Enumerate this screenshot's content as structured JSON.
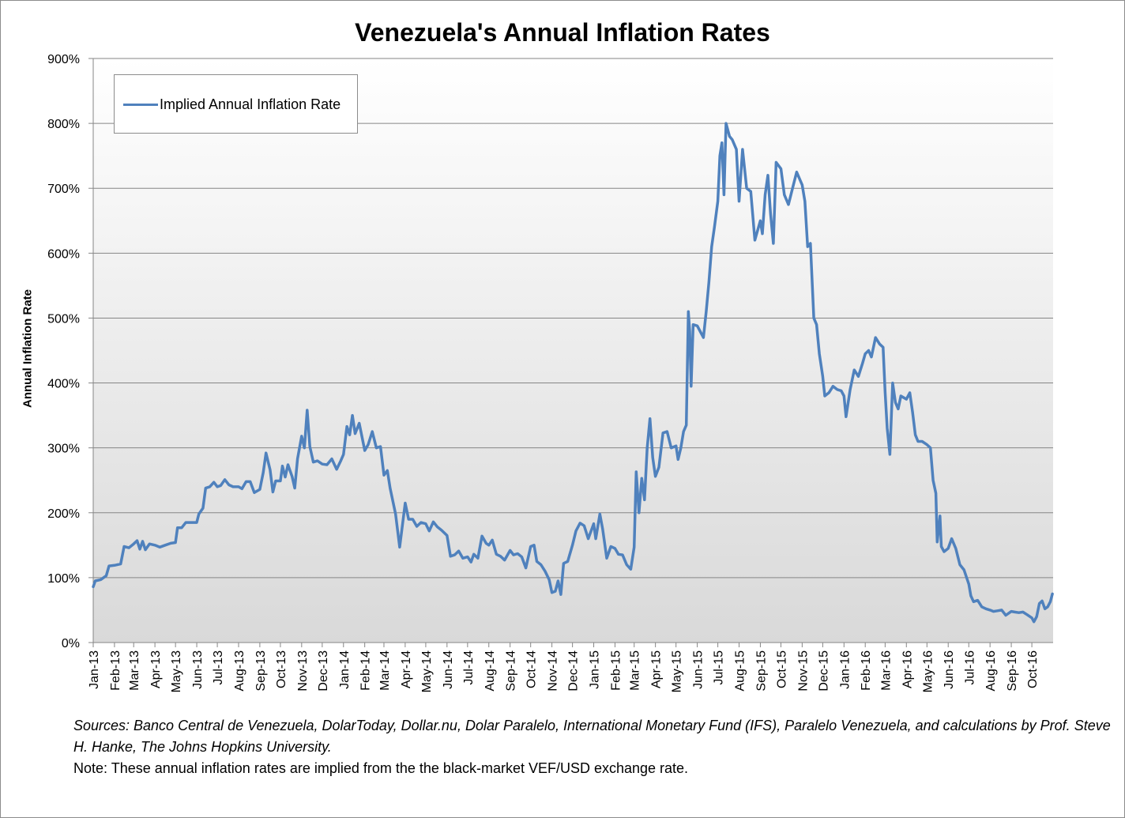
{
  "chart_data": {
    "type": "line",
    "title": "Venezuela's Annual Inflation Rates",
    "ylabel": "Annual Inflation Rate",
    "xlabel": "",
    "ylim": [
      0,
      900
    ],
    "y_ticks": [
      "0%",
      "100%",
      "200%",
      "300%",
      "400%",
      "500%",
      "600%",
      "700%",
      "800%",
      "900%"
    ],
    "x_ticks": [
      "Jan-13",
      "Feb-13",
      "Mar-13",
      "Apr-13",
      "May-13",
      "Jun-13",
      "Jul-13",
      "Aug-13",
      "Sep-13",
      "Oct-13",
      "Nov-13",
      "Dec-13",
      "Jan-14",
      "Feb-14",
      "Mar-14",
      "Apr-14",
      "May-14",
      "Jun-14",
      "Jul-14",
      "Aug-14",
      "Sep-14",
      "Oct-14",
      "Nov-14",
      "Dec-14",
      "Jan-15",
      "Feb-15",
      "Mar-15",
      "Apr-15",
      "May-15",
      "Jun-15",
      "Jul-15",
      "Aug-15",
      "Sep-15",
      "Oct-15",
      "Nov-15",
      "Dec-15",
      "Jan-16",
      "Feb-16",
      "Mar-16",
      "Apr-16",
      "May-16",
      "Jun-16",
      "Jul-16",
      "Aug-16",
      "Sep-16",
      "Oct-16"
    ],
    "grid": true,
    "legend_position": "top-left",
    "series": [
      {
        "name": "Implied Annual Inflation Rate",
        "color": "#4f81bd",
        "points": [
          [
            "2013-01-01",
            86
          ],
          [
            "2013-01-04",
            95
          ],
          [
            "2013-01-12",
            97
          ],
          [
            "2013-01-20",
            103
          ],
          [
            "2013-01-24",
            118
          ],
          [
            "2013-02-01",
            119
          ],
          [
            "2013-02-10",
            121
          ],
          [
            "2013-02-15",
            148
          ],
          [
            "2013-02-22",
            146
          ],
          [
            "2013-03-01",
            152
          ],
          [
            "2013-03-06",
            157
          ],
          [
            "2013-03-10",
            144
          ],
          [
            "2013-03-14",
            156
          ],
          [
            "2013-03-18",
            143
          ],
          [
            "2013-03-24",
            152
          ],
          [
            "2013-04-01",
            150
          ],
          [
            "2013-04-08",
            147
          ],
          [
            "2013-04-16",
            150
          ],
          [
            "2013-04-24",
            153
          ],
          [
            "2013-05-01",
            154
          ],
          [
            "2013-05-04",
            177
          ],
          [
            "2013-05-10",
            177
          ],
          [
            "2013-05-16",
            185
          ],
          [
            "2013-05-24",
            185
          ],
          [
            "2013-06-01",
            185
          ],
          [
            "2013-06-04",
            198
          ],
          [
            "2013-06-10",
            207
          ],
          [
            "2013-06-14",
            238
          ],
          [
            "2013-06-20",
            240
          ],
          [
            "2013-06-26",
            247
          ],
          [
            "2013-07-01",
            240
          ],
          [
            "2013-07-06",
            242
          ],
          [
            "2013-07-12",
            251
          ],
          [
            "2013-07-18",
            243
          ],
          [
            "2013-07-24",
            240
          ],
          [
            "2013-08-01",
            240
          ],
          [
            "2013-08-06",
            237
          ],
          [
            "2013-08-12",
            248
          ],
          [
            "2013-08-18",
            248
          ],
          [
            "2013-08-24",
            231
          ],
          [
            "2013-09-01",
            236
          ],
          [
            "2013-09-06",
            262
          ],
          [
            "2013-09-10",
            292
          ],
          [
            "2013-09-16",
            266
          ],
          [
            "2013-09-20",
            232
          ],
          [
            "2013-09-24",
            249
          ],
          [
            "2013-10-01",
            249
          ],
          [
            "2013-10-04",
            272
          ],
          [
            "2013-10-08",
            255
          ],
          [
            "2013-10-12",
            274
          ],
          [
            "2013-10-18",
            256
          ],
          [
            "2013-10-22",
            238
          ],
          [
            "2013-10-26",
            283
          ],
          [
            "2013-11-01",
            318
          ],
          [
            "2013-11-05",
            300
          ],
          [
            "2013-11-09",
            358
          ],
          [
            "2013-11-13",
            302
          ],
          [
            "2013-11-18",
            278
          ],
          [
            "2013-11-24",
            280
          ],
          [
            "2013-12-01",
            275
          ],
          [
            "2013-12-08",
            274
          ],
          [
            "2013-12-15",
            283
          ],
          [
            "2013-12-22",
            267
          ],
          [
            "2013-12-28",
            280
          ],
          [
            "2014-01-01",
            290
          ],
          [
            "2014-01-06",
            333
          ],
          [
            "2014-01-10",
            320
          ],
          [
            "2014-01-14",
            350
          ],
          [
            "2014-01-18",
            322
          ],
          [
            "2014-01-24",
            338
          ],
          [
            "2014-02-01",
            296
          ],
          [
            "2014-02-06",
            305
          ],
          [
            "2014-02-12",
            325
          ],
          [
            "2014-02-18",
            300
          ],
          [
            "2014-02-24",
            302
          ],
          [
            "2014-03-01",
            258
          ],
          [
            "2014-03-06",
            265
          ],
          [
            "2014-03-10",
            238
          ],
          [
            "2014-03-18",
            198
          ],
          [
            "2014-03-24",
            147
          ],
          [
            "2014-04-01",
            215
          ],
          [
            "2014-04-06",
            190
          ],
          [
            "2014-04-12",
            190
          ],
          [
            "2014-04-18",
            179
          ],
          [
            "2014-04-24",
            185
          ],
          [
            "2014-05-01",
            183
          ],
          [
            "2014-05-06",
            172
          ],
          [
            "2014-05-12",
            186
          ],
          [
            "2014-05-18",
            178
          ],
          [
            "2014-05-24",
            173
          ],
          [
            "2014-06-01",
            165
          ],
          [
            "2014-06-06",
            133
          ],
          [
            "2014-06-12",
            135
          ],
          [
            "2014-06-18",
            141
          ],
          [
            "2014-06-24",
            130
          ],
          [
            "2014-07-01",
            132
          ],
          [
            "2014-07-06",
            124
          ],
          [
            "2014-07-10",
            136
          ],
          [
            "2014-07-16",
            130
          ],
          [
            "2014-07-22",
            164
          ],
          [
            "2014-07-28",
            153
          ],
          [
            "2014-08-01",
            150
          ],
          [
            "2014-08-06",
            158
          ],
          [
            "2014-08-12",
            136
          ],
          [
            "2014-08-18",
            133
          ],
          [
            "2014-08-24",
            127
          ],
          [
            "2014-09-01",
            142
          ],
          [
            "2014-09-06",
            135
          ],
          [
            "2014-09-12",
            137
          ],
          [
            "2014-09-18",
            132
          ],
          [
            "2014-09-24",
            115
          ],
          [
            "2014-10-01",
            148
          ],
          [
            "2014-10-06",
            150
          ],
          [
            "2014-10-10",
            125
          ],
          [
            "2014-10-16",
            120
          ],
          [
            "2014-10-22",
            110
          ],
          [
            "2014-10-28",
            97
          ],
          [
            "2014-11-01",
            77
          ],
          [
            "2014-11-06",
            79
          ],
          [
            "2014-11-10",
            95
          ],
          [
            "2014-11-14",
            74
          ],
          [
            "2014-11-18",
            122
          ],
          [
            "2014-11-24",
            125
          ],
          [
            "2014-12-01",
            150
          ],
          [
            "2014-12-06",
            172
          ],
          [
            "2014-12-12",
            184
          ],
          [
            "2014-12-18",
            180
          ],
          [
            "2014-12-24",
            160
          ],
          [
            "2015-01-01",
            183
          ],
          [
            "2015-01-04",
            160
          ],
          [
            "2015-01-10",
            198
          ],
          [
            "2015-01-14",
            175
          ],
          [
            "2015-01-20",
            130
          ],
          [
            "2015-01-26",
            148
          ],
          [
            "2015-02-01",
            145
          ],
          [
            "2015-02-06",
            136
          ],
          [
            "2015-02-12",
            135
          ],
          [
            "2015-02-18",
            120
          ],
          [
            "2015-02-24",
            113
          ],
          [
            "2015-03-01",
            147
          ],
          [
            "2015-03-04",
            263
          ],
          [
            "2015-03-08",
            200
          ],
          [
            "2015-03-12",
            253
          ],
          [
            "2015-03-16",
            220
          ],
          [
            "2015-03-20",
            300
          ],
          [
            "2015-03-24",
            345
          ],
          [
            "2015-03-28",
            285
          ],
          [
            "2015-04-01",
            256
          ],
          [
            "2015-04-06",
            270
          ],
          [
            "2015-04-12",
            323
          ],
          [
            "2015-04-18",
            325
          ],
          [
            "2015-04-24",
            300
          ],
          [
            "2015-05-01",
            303
          ],
          [
            "2015-05-04",
            282
          ],
          [
            "2015-05-08",
            300
          ],
          [
            "2015-05-12",
            325
          ],
          [
            "2015-05-16",
            335
          ],
          [
            "2015-05-19",
            510
          ],
          [
            "2015-05-21",
            480
          ],
          [
            "2015-05-23",
            395
          ],
          [
            "2015-05-26",
            490
          ],
          [
            "2015-06-01",
            488
          ],
          [
            "2015-06-06",
            478
          ],
          [
            "2015-06-10",
            470
          ],
          [
            "2015-06-14",
            510
          ],
          [
            "2015-06-18",
            555
          ],
          [
            "2015-06-22",
            610
          ],
          [
            "2015-06-26",
            640
          ],
          [
            "2015-07-01",
            680
          ],
          [
            "2015-07-04",
            750
          ],
          [
            "2015-07-07",
            770
          ],
          [
            "2015-07-10",
            690
          ],
          [
            "2015-07-13",
            800
          ],
          [
            "2015-07-18",
            780
          ],
          [
            "2015-07-22",
            775
          ],
          [
            "2015-07-28",
            760
          ],
          [
            "2015-08-01",
            680
          ],
          [
            "2015-08-06",
            760
          ],
          [
            "2015-08-12",
            700
          ],
          [
            "2015-08-18",
            695
          ],
          [
            "2015-08-24",
            620
          ],
          [
            "2015-09-01",
            650
          ],
          [
            "2015-09-04",
            630
          ],
          [
            "2015-09-08",
            690
          ],
          [
            "2015-09-12",
            720
          ],
          [
            "2015-09-16",
            660
          ],
          [
            "2015-09-20",
            615
          ],
          [
            "2015-09-24",
            740
          ],
          [
            "2015-10-01",
            730
          ],
          [
            "2015-10-06",
            690
          ],
          [
            "2015-10-12",
            675
          ],
          [
            "2015-10-18",
            700
          ],
          [
            "2015-10-24",
            725
          ],
          [
            "2015-11-01",
            705
          ],
          [
            "2015-11-05",
            680
          ],
          [
            "2015-11-09",
            610
          ],
          [
            "2015-11-13",
            615
          ],
          [
            "2015-11-18",
            500
          ],
          [
            "2015-11-22",
            490
          ],
          [
            "2015-11-26",
            445
          ],
          [
            "2015-12-01",
            410
          ],
          [
            "2015-12-04",
            380
          ],
          [
            "2015-12-10",
            385
          ],
          [
            "2015-12-16",
            395
          ],
          [
            "2015-12-22",
            390
          ],
          [
            "2015-12-28",
            388
          ],
          [
            "2016-01-01",
            380
          ],
          [
            "2016-01-04",
            348
          ],
          [
            "2016-01-10",
            390
          ],
          [
            "2016-01-16",
            420
          ],
          [
            "2016-01-22",
            410
          ],
          [
            "2016-01-28",
            430
          ],
          [
            "2016-02-01",
            445
          ],
          [
            "2016-02-06",
            450
          ],
          [
            "2016-02-10",
            440
          ],
          [
            "2016-02-16",
            470
          ],
          [
            "2016-02-22",
            460
          ],
          [
            "2016-02-27",
            455
          ],
          [
            "2016-03-01",
            385
          ],
          [
            "2016-03-04",
            330
          ],
          [
            "2016-03-08",
            290
          ],
          [
            "2016-03-12",
            400
          ],
          [
            "2016-03-16",
            370
          ],
          [
            "2016-03-20",
            360
          ],
          [
            "2016-03-24",
            380
          ],
          [
            "2016-04-01",
            375
          ],
          [
            "2016-04-06",
            385
          ],
          [
            "2016-04-10",
            355
          ],
          [
            "2016-04-14",
            320
          ],
          [
            "2016-04-18",
            310
          ],
          [
            "2016-04-24",
            310
          ],
          [
            "2016-05-01",
            305
          ],
          [
            "2016-05-06",
            300
          ],
          [
            "2016-05-10",
            250
          ],
          [
            "2016-05-14",
            230
          ],
          [
            "2016-05-16",
            155
          ],
          [
            "2016-05-20",
            195
          ],
          [
            "2016-05-22",
            148
          ],
          [
            "2016-05-26",
            140
          ],
          [
            "2016-06-01",
            145
          ],
          [
            "2016-06-06",
            160
          ],
          [
            "2016-06-12",
            145
          ],
          [
            "2016-06-18",
            120
          ],
          [
            "2016-06-24",
            112
          ],
          [
            "2016-07-01",
            90
          ],
          [
            "2016-07-04",
            72
          ],
          [
            "2016-07-08",
            63
          ],
          [
            "2016-07-14",
            65
          ],
          [
            "2016-07-20",
            55
          ],
          [
            "2016-07-26",
            52
          ],
          [
            "2016-08-01",
            50
          ],
          [
            "2016-08-06",
            48
          ],
          [
            "2016-08-12",
            49
          ],
          [
            "2016-08-18",
            50
          ],
          [
            "2016-08-24",
            42
          ],
          [
            "2016-09-01",
            48
          ],
          [
            "2016-09-06",
            47
          ],
          [
            "2016-09-12",
            46
          ],
          [
            "2016-09-18",
            47
          ],
          [
            "2016-09-24",
            43
          ],
          [
            "2016-10-01",
            38
          ],
          [
            "2016-10-04",
            32
          ],
          [
            "2016-10-08",
            40
          ],
          [
            "2016-10-12",
            60
          ],
          [
            "2016-10-16",
            64
          ],
          [
            "2016-10-20",
            52
          ],
          [
            "2016-10-24",
            55
          ],
          [
            "2016-10-28",
            63
          ],
          [
            "2016-10-31",
            75
          ]
        ]
      }
    ]
  },
  "notes": {
    "sources": "Sources: Banco Central de Venezuela, DolarToday, Dollar.nu, Dolar Paralelo, International Monetary Fund (IFS), Paralelo Venezuela, and calculations by Prof. Steve H. Hanke, The Johns Hopkins University.",
    "note": "Note: These annual inflation rates are implied from the the black-market VEF/USD exchange rate."
  }
}
